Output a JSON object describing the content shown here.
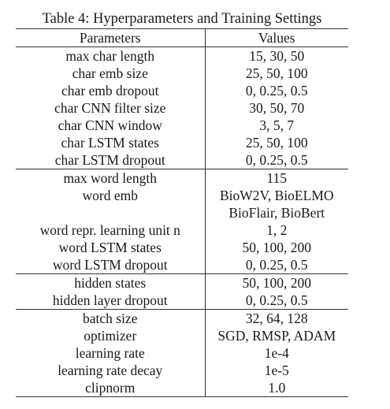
{
  "caption": "Table 4: Hyperparameters and Training Settings",
  "header": {
    "parameters": "Parameters",
    "values": "Values"
  },
  "groups": [
    [
      {
        "param": "max char length",
        "value": "15, 30, 50"
      },
      {
        "param": "char emb size",
        "value": "25, 50, 100"
      },
      {
        "param": "char emb dropout",
        "value": "0, 0.25, 0.5"
      },
      {
        "param": "char CNN filter size",
        "value": "30, 50, 70"
      },
      {
        "param": "char CNN window",
        "value": "3, 5, 7"
      },
      {
        "param": "char LSTM states",
        "value": "25, 50, 100"
      },
      {
        "param": "char LSTM dropout",
        "value": "0, 0.25, 0.5"
      }
    ],
    [
      {
        "param": "max word length",
        "value": "115"
      },
      {
        "param": "word emb",
        "value": "BioW2V, BioELMO"
      },
      {
        "param": "",
        "value": "BioFlair, BioBert"
      },
      {
        "param": "word repr. learning unit n",
        "value": "1, 2"
      },
      {
        "param": "word LSTM states",
        "value": "50, 100, 200"
      },
      {
        "param": "word LSTM dropout",
        "value": "0, 0.25, 0.5"
      }
    ],
    [
      {
        "param": "hidden states",
        "value": "50, 100, 200"
      },
      {
        "param": "hidden layer dropout",
        "value": "0, 0.25, 0.5"
      }
    ],
    [
      {
        "param": "batch size",
        "value": "32, 64, 128"
      },
      {
        "param": "optimizer",
        "value": "SGD, RMSP, ADAM"
      },
      {
        "param": "learning rate",
        "value": "1e-4"
      },
      {
        "param": "learning rate decay",
        "value": "1e-5"
      },
      {
        "param": "clipnorm",
        "value": "1.0"
      }
    ]
  ]
}
